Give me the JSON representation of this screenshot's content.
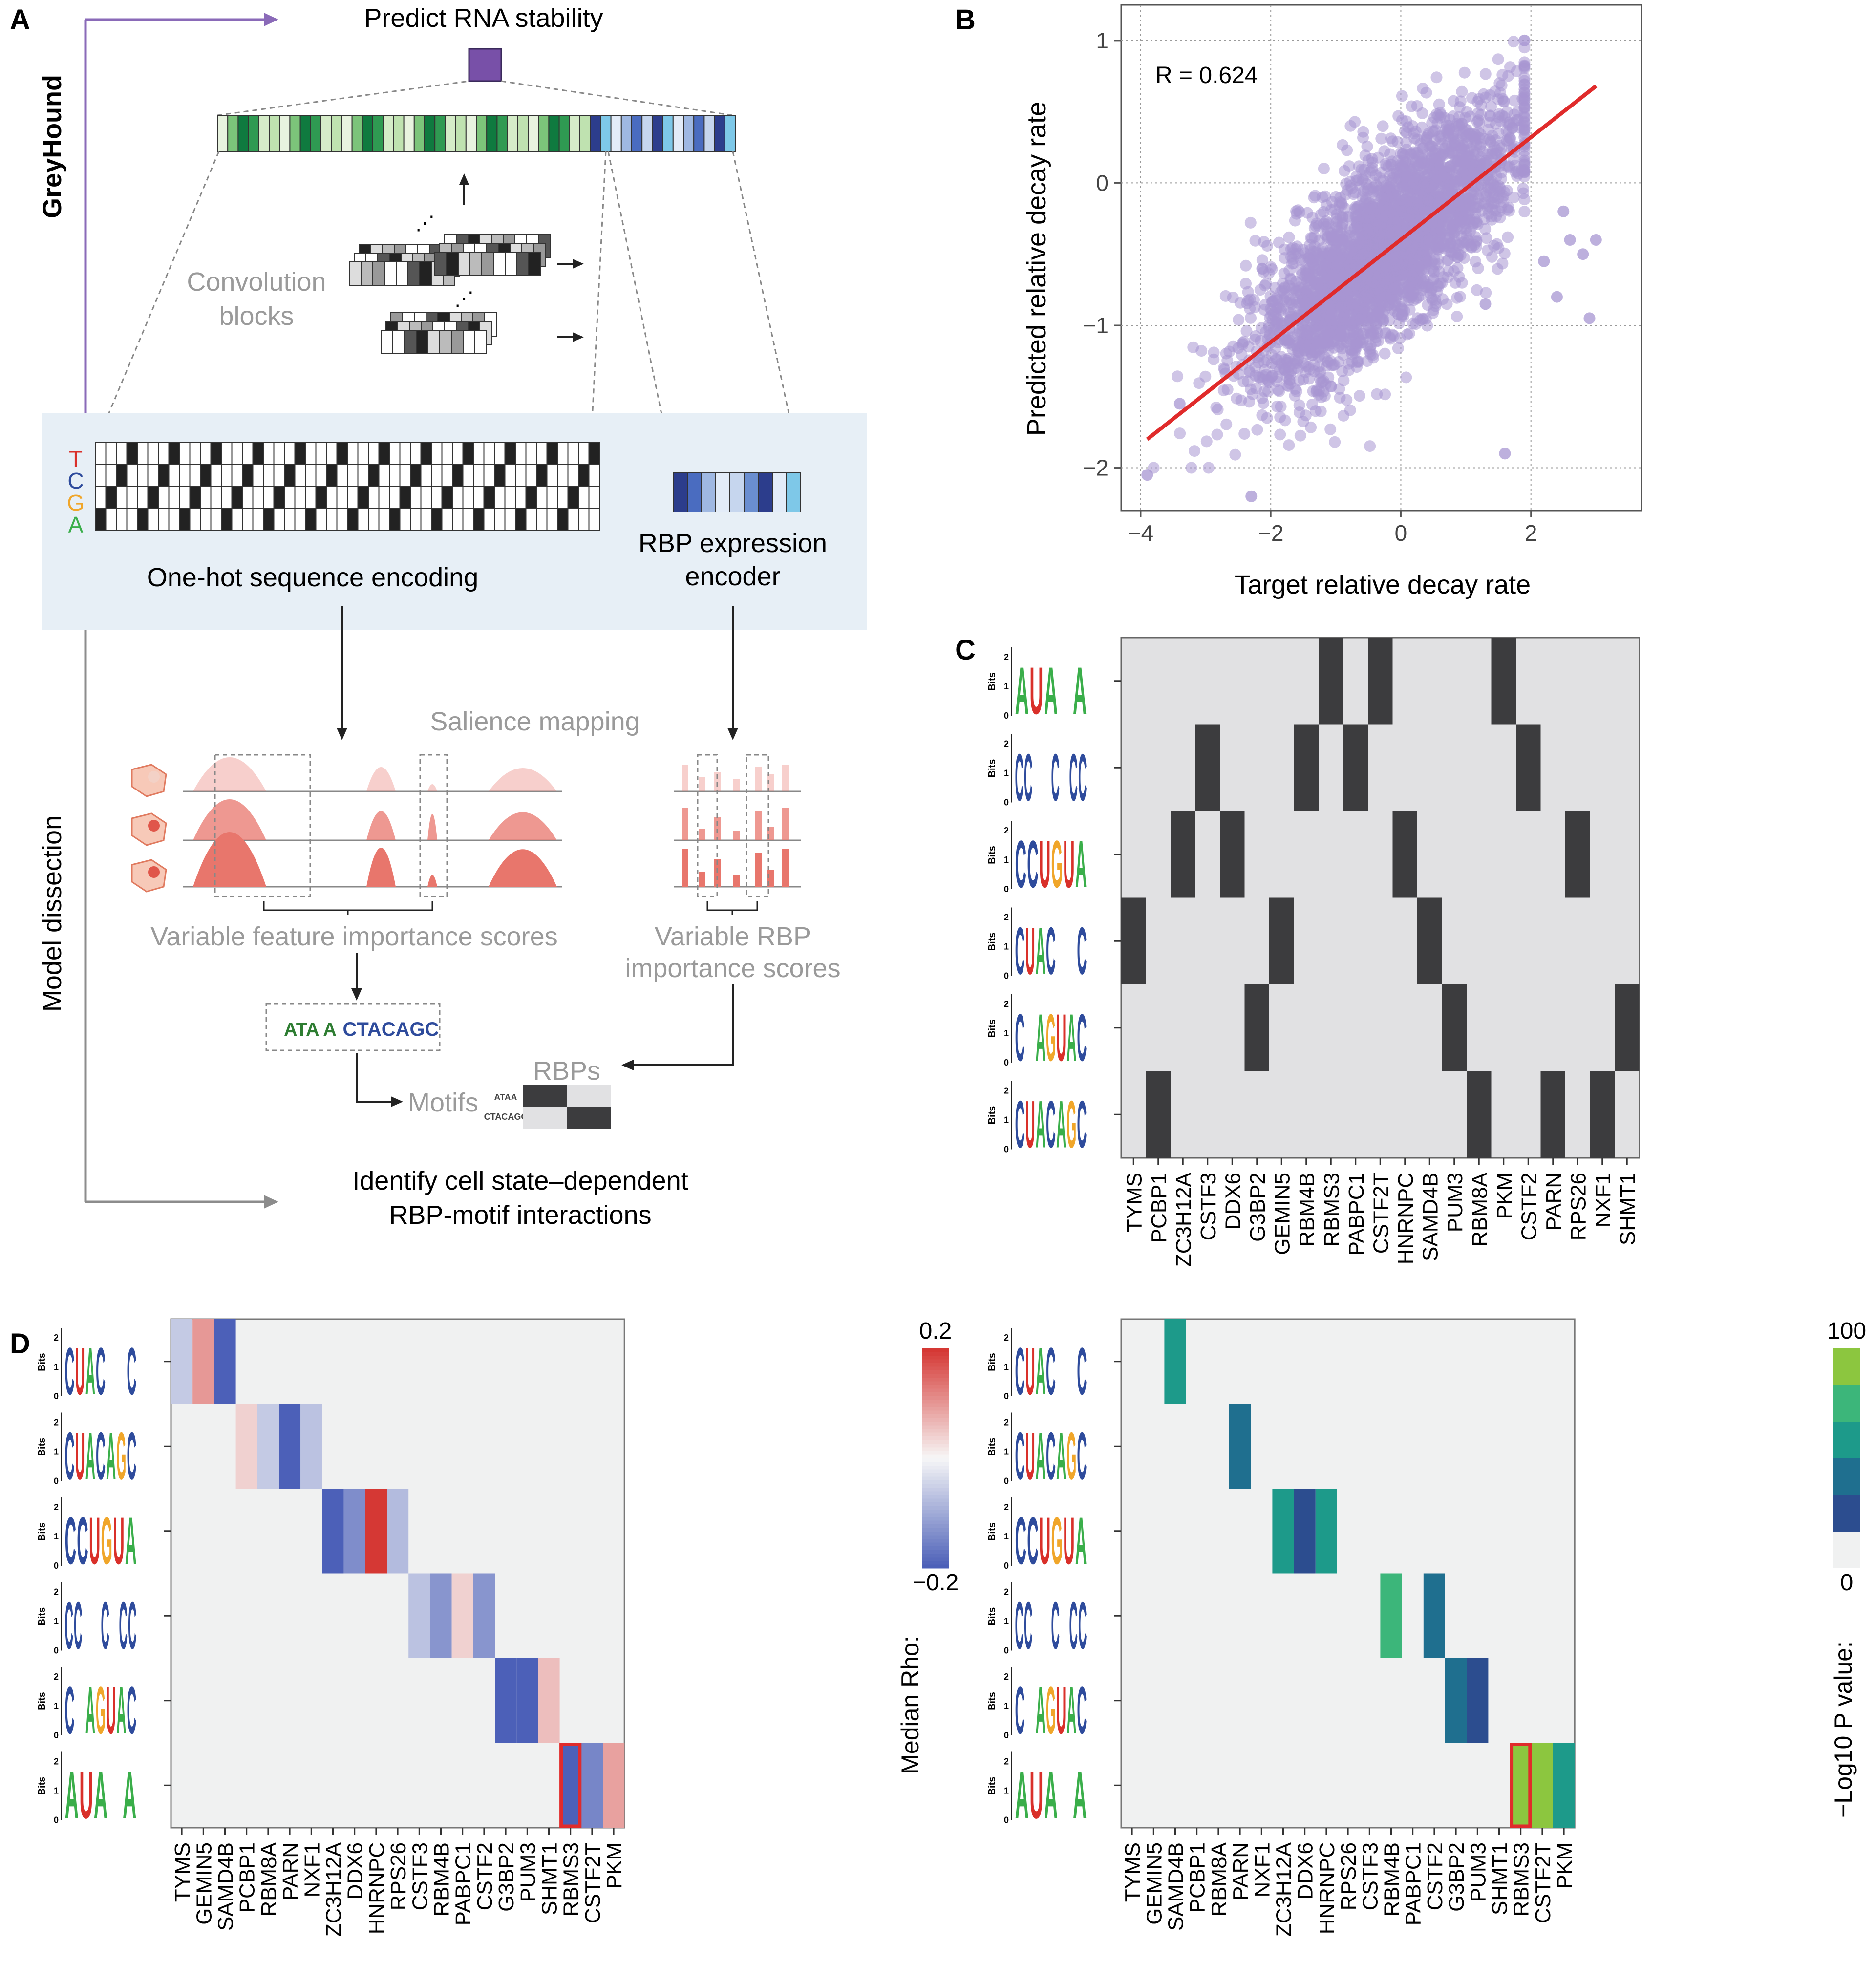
{
  "figure": {
    "panel_labels": [
      "A",
      "B",
      "C",
      "D"
    ],
    "panel_a": {
      "side_top": "GreyHound",
      "side_bottom": "Model dissection",
      "predict_title": "Predict RNA stability",
      "conv_label_1": "Convolution",
      "conv_label_2": "blocks",
      "nucleotides": [
        "T",
        "C",
        "G",
        "A"
      ],
      "onehot_label": "One-hot sequence encoding",
      "rbp_label_1": "RBP expression",
      "rbp_label_2": "encoder",
      "salience_label": "Salience mapping",
      "feature_label": "Variable feature importance scores",
      "rbp_imp_label_1": "Variable RBP",
      "rbp_imp_label_2": "importance scores",
      "motif_box_text": [
        "ATA A",
        "CTACAGC"
      ],
      "motifs_label": "Motifs",
      "rbps_label": "RBPs",
      "mini_motifs": [
        "ATAA",
        "CTACAGC"
      ],
      "identify_label_1": "Identify cell state–dependent",
      "identify_label_2": "RBP-motif interactions",
      "colors": {
        "green_dark": "#0f7a3f",
        "blue_dark": "#2c3d8c",
        "purple": "#7850a8",
        "salience": "#e8766c"
      }
    },
    "panel_b": {
      "annotation": "R = 0.624",
      "point_color": "#a795d1",
      "line_color": "#e02b2b"
    },
    "motifs": {
      "bits_label": "Bits",
      "logo_ticks": [
        "0",
        "1",
        "2"
      ],
      "list": [
        {
          "id": "AUAAA",
          "text": "AUA A"
        },
        {
          "id": "CCACCC",
          "text": "CC  C CC"
        },
        {
          "id": "CCUGUA",
          "text": "CCUGUA"
        },
        {
          "id": "CUACGAC",
          "text": "CUAC  C"
        },
        {
          "id": "CAGUAC",
          "text": "C AGUAC"
        },
        {
          "id": "CUACAGC",
          "text": "CUACAGC"
        }
      ]
    },
    "panel_c": {
      "heat_bg": "#e1e1e3",
      "heat_on": "#3c3c3e"
    },
    "panel_d": {
      "left_colorbar": {
        "max_label": "0.2",
        "min_label": "−0.2",
        "title": "Median Rho:"
      },
      "right_colorbar": {
        "max_label": "100",
        "min_label": "0",
        "title": "−Log10 P value:"
      },
      "highlight_color": "#e02b2b"
    }
  },
  "chart_data": [
    {
      "type": "scatter",
      "panel": "B",
      "xlabel": "Target relative decay rate",
      "ylabel": "Predicted relative decay rate",
      "xlim": [
        -4.3,
        3.7
      ],
      "ylim": [
        -2.3,
        1.25
      ],
      "xticks": [
        -4,
        -2,
        0,
        2
      ],
      "yticks": [
        -2,
        -1,
        0,
        1
      ],
      "grid": true,
      "correlation": 0.624,
      "fit_line": [
        [
          -3.9,
          -1.8
        ],
        [
          3.0,
          0.68
        ]
      ],
      "n_points_approx": 3000,
      "outlier_points": [
        [
          -2.3,
          -2.2
        ],
        [
          -3.9,
          -2.05
        ],
        [
          1.6,
          -1.9
        ],
        [
          2.4,
          -0.8
        ],
        [
          2.6,
          -0.4
        ],
        [
          2.8,
          -0.5
        ],
        [
          2.9,
          -0.95
        ],
        [
          3.0,
          -0.4
        ],
        [
          2.5,
          -0.2
        ],
        [
          2.2,
          -0.55
        ],
        [
          -3.4,
          -1.55
        ],
        [
          1.3,
          -0.85
        ]
      ]
    },
    {
      "type": "heatmap",
      "panel": "C",
      "rows": [
        "AUAAA",
        "CCACCC",
        "CCUGUA",
        "CUACGAC",
        "CAGUAC",
        "CUACAGC"
      ],
      "columns": [
        "TYMS",
        "PCBP1",
        "ZC3H12A",
        "CSTF3",
        "DDX6",
        "G3BP2",
        "GEMIN5",
        "RBM4B",
        "RBMS3",
        "PABPC1",
        "CSTF2T",
        "HNRNPC",
        "SAMD4B",
        "PUM3",
        "RBM8A",
        "PKM",
        "CSTF2",
        "PARN",
        "RPS26",
        "NXF1",
        "SHMT1"
      ],
      "values": [
        [
          0,
          0,
          0,
          0,
          0,
          0,
          0,
          0,
          1,
          0,
          1,
          0,
          0,
          0,
          0,
          1,
          0,
          0,
          0,
          0,
          0
        ],
        [
          0,
          0,
          0,
          1,
          0,
          0,
          0,
          1,
          0,
          1,
          0,
          0,
          0,
          0,
          0,
          0,
          1,
          0,
          0,
          0,
          0
        ],
        [
          0,
          0,
          1,
          0,
          1,
          0,
          0,
          0,
          0,
          0,
          0,
          1,
          0,
          0,
          0,
          0,
          0,
          0,
          1,
          0,
          0
        ],
        [
          1,
          0,
          0,
          0,
          0,
          0,
          1,
          0,
          0,
          0,
          0,
          0,
          1,
          0,
          0,
          0,
          0,
          0,
          0,
          0,
          0
        ],
        [
          0,
          0,
          0,
          0,
          0,
          1,
          0,
          0,
          0,
          0,
          0,
          0,
          0,
          1,
          0,
          0,
          0,
          0,
          0,
          0,
          1
        ],
        [
          0,
          1,
          0,
          0,
          0,
          0,
          0,
          0,
          0,
          0,
          0,
          0,
          0,
          0,
          1,
          0,
          0,
          1,
          0,
          1,
          0
        ]
      ]
    },
    {
      "type": "heatmap",
      "panel": "D-left",
      "title": "Median Rho",
      "rows": [
        "CUACGAC",
        "CUACAGC",
        "CCUGUA",
        "CCACCC",
        "CAGUAC",
        "AUAAA"
      ],
      "columns": [
        "TYMS",
        "GEMIN5",
        "SAMD4B",
        "PCBP1",
        "RBM8A",
        "PARN",
        "NXF1",
        "ZC3H12A",
        "DDX6",
        "HNRNPC",
        "RPS26",
        "CSTF3",
        "RBM4B",
        "PABPC1",
        "CSTF2",
        "G3BP2",
        "PUM3",
        "SHMT1",
        "RBMS3",
        "CSTF2T",
        "PKM"
      ],
      "range": [
        -0.2,
        0.2
      ],
      "cells": [
        {
          "row": "CUACGAC",
          "col": "TYMS",
          "value": -0.06
        },
        {
          "row": "CUACGAC",
          "col": "GEMIN5",
          "value": 0.1
        },
        {
          "row": "CUACGAC",
          "col": "SAMD4B",
          "value": -0.2
        },
        {
          "row": "CUACAGC",
          "col": "PCBP1",
          "value": 0.04
        },
        {
          "row": "CUACAGC",
          "col": "RBM8A",
          "value": -0.06
        },
        {
          "row": "CUACAGC",
          "col": "PARN",
          "value": -0.2
        },
        {
          "row": "CUACAGC",
          "col": "NXF1",
          "value": -0.07
        },
        {
          "row": "CCUGUA",
          "col": "ZC3H12A",
          "value": -0.2
        },
        {
          "row": "CCUGUA",
          "col": "DDX6",
          "value": -0.14
        },
        {
          "row": "CCUGUA",
          "col": "HNRNPC",
          "value": 0.2
        },
        {
          "row": "CCUGUA",
          "col": "RPS26",
          "value": -0.08
        },
        {
          "row": "CCACCC",
          "col": "CSTF3",
          "value": -0.07
        },
        {
          "row": "CCACCC",
          "col": "RBM4B",
          "value": -0.13
        },
        {
          "row": "CCACCC",
          "col": "PABPC1",
          "value": 0.04
        },
        {
          "row": "CCACCC",
          "col": "CSTF2",
          "value": -0.13
        },
        {
          "row": "CAGUAC",
          "col": "G3BP2",
          "value": -0.2
        },
        {
          "row": "CAGUAC",
          "col": "PUM3",
          "value": -0.2
        },
        {
          "row": "CAGUAC",
          "col": "SHMT1",
          "value": 0.06
        },
        {
          "row": "AUAAA",
          "col": "RBMS3",
          "value": -0.2
        },
        {
          "row": "AUAAA",
          "col": "CSTF2T",
          "value": -0.15
        },
        {
          "row": "AUAAA",
          "col": "PKM",
          "value": 0.09
        }
      ],
      "highlight": {
        "row": "AUAAA",
        "col": "RBMS3"
      }
    },
    {
      "type": "heatmap",
      "panel": "D-right",
      "title": "−Log10 P value",
      "rows": [
        "CUACGAC",
        "CUACAGC",
        "CCUGUA",
        "CCACCC",
        "CAGUAC",
        "AUAAA"
      ],
      "columns": [
        "TYMS",
        "GEMIN5",
        "SAMD4B",
        "PCBP1",
        "RBM8A",
        "PARN",
        "NXF1",
        "ZC3H12A",
        "DDX6",
        "HNRNPC",
        "RPS26",
        "CSTF3",
        "RBM4B",
        "PABPC1",
        "CSTF2",
        "G3BP2",
        "PUM3",
        "SHMT1",
        "RBMS3",
        "CSTF2T",
        "PKM"
      ],
      "range": [
        0,
        100
      ],
      "cells": [
        {
          "row": "CUACGAC",
          "col": "SAMD4B",
          "value": 55
        },
        {
          "row": "CUACAGC",
          "col": "PARN",
          "value": 35
        },
        {
          "row": "CCUGUA",
          "col": "ZC3H12A",
          "value": 55
        },
        {
          "row": "CCUGUA",
          "col": "DDX6",
          "value": 20
        },
        {
          "row": "CCUGUA",
          "col": "HNRNPC",
          "value": 55
        },
        {
          "row": "CCACCC",
          "col": "RBM4B",
          "value": 72
        },
        {
          "row": "CCACCC",
          "col": "CSTF2",
          "value": 35
        },
        {
          "row": "CAGUAC",
          "col": "G3BP2",
          "value": 35
        },
        {
          "row": "CAGUAC",
          "col": "PUM3",
          "value": 20
        },
        {
          "row": "AUAAA",
          "col": "RBMS3",
          "value": 95
        },
        {
          "row": "AUAAA",
          "col": "CSTF2T",
          "value": 95
        },
        {
          "row": "AUAAA",
          "col": "PKM",
          "value": 55
        }
      ],
      "highlight": {
        "row": "AUAAA",
        "col": "RBMS3"
      }
    }
  ]
}
